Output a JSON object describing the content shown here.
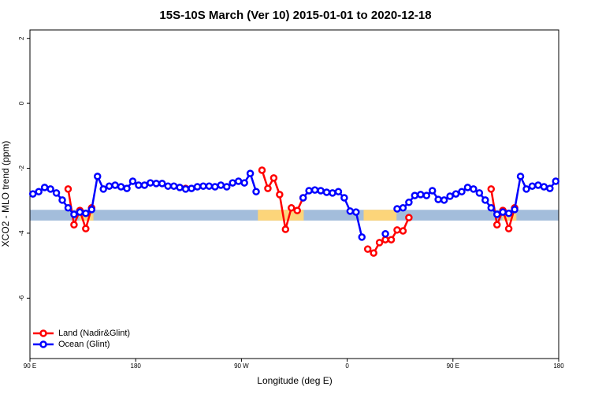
{
  "chart_data": {
    "type": "line",
    "title": "15S-10S March (Ver 10)   2015-01-01 to 2020-12-18",
    "x_label": "Longitude (deg E)",
    "y_label": "XCO2 - MLO trend (ppm)",
    "x": [
      92.5,
      97.5,
      102.5,
      107.5,
      112.5,
      117.5,
      122.5,
      127.5,
      132.5,
      137.5,
      142.5,
      147.5,
      152.5,
      157.5,
      162.5,
      167.5,
      172.5,
      177.5,
      182.5,
      187.5,
      192.5,
      197.5,
      202.5,
      207.5,
      212.5,
      217.5,
      222.5,
      227.5,
      232.5,
      237.5,
      242.5,
      247.5,
      252.5,
      257.5,
      262.5,
      267.5,
      272.5,
      277.5,
      282.5,
      287.5,
      292.5,
      297.5,
      302.5,
      307.5,
      312.5,
      317.5,
      322.5,
      327.5,
      332.5,
      337.5,
      342.5,
      347.5,
      352.5,
      357.5,
      362.5,
      367.5,
      372.5,
      377.5,
      382.5,
      387.5,
      392.5,
      397.5,
      402.5,
      407.5,
      412.5,
      417.5,
      422.5,
      427.5,
      432.5,
      437.5,
      442.5,
      447.5,
      452.5,
      457.5,
      462.5,
      467.5,
      472.5,
      477.5,
      482.5,
      487.5,
      492.5,
      497.5,
      502.5,
      507.5,
      512.5,
      517.5,
      522.5,
      527.5,
      532.5,
      537.5
    ],
    "series": [
      {
        "name": "Land (Nadir&Glint)",
        "color": "#ff0000",
        "values": [
          null,
          null,
          null,
          null,
          null,
          null,
          -2.64,
          -3.74,
          -3.3,
          -3.86,
          -3.22,
          null,
          null,
          null,
          null,
          null,
          null,
          null,
          null,
          null,
          null,
          null,
          null,
          null,
          null,
          null,
          -2.62,
          null,
          null,
          null,
          null,
          null,
          null,
          null,
          null,
          null,
          null,
          null,
          null,
          -2.06,
          -2.62,
          -2.3,
          -2.81,
          -3.88,
          -3.22,
          -3.3,
          -2.91,
          null,
          null,
          null,
          null,
          null,
          null,
          null,
          null,
          null,
          null,
          -4.49,
          -4.61,
          -4.29,
          -4.2,
          -4.2,
          -3.9,
          -3.93,
          -3.52,
          null,
          null,
          null,
          null,
          null,
          null,
          null,
          null,
          null,
          null,
          null,
          null,
          null,
          -2.64,
          -3.74,
          -3.3,
          -3.86,
          -3.22,
          null,
          null,
          null,
          null,
          null,
          null,
          null
        ]
      },
      {
        "name": "Ocean (Glint)",
        "color": "#0000ff",
        "values": [
          -2.79,
          -2.72,
          -2.59,
          -2.64,
          -2.76,
          -2.98,
          -3.22,
          -3.42,
          -3.35,
          -3.39,
          -3.27,
          -2.25,
          -2.64,
          -2.55,
          -2.52,
          -2.57,
          -2.62,
          -2.4,
          -2.52,
          -2.52,
          -2.45,
          -2.47,
          -2.47,
          -2.55,
          -2.55,
          -2.59,
          -2.64,
          -2.62,
          -2.57,
          -2.55,
          -2.55,
          -2.57,
          -2.52,
          -2.57,
          -2.45,
          -2.4,
          -2.45,
          -2.16,
          -2.72,
          null,
          null,
          null,
          null,
          null,
          null,
          null,
          -2.91,
          -2.69,
          -2.67,
          -2.69,
          -2.74,
          -2.76,
          -2.72,
          -2.91,
          -3.32,
          -3.35,
          -4.12,
          null,
          null,
          null,
          -4.02,
          null,
          -3.25,
          -3.22,
          -3.05,
          -2.84,
          -2.81,
          -2.84,
          -2.69,
          -2.96,
          -2.98,
          -2.86,
          -2.79,
          -2.72,
          -2.59,
          -2.64,
          -2.76,
          -2.98,
          -3.22,
          -3.42,
          -3.35,
          -3.39,
          -3.27,
          -2.25,
          -2.64,
          -2.55,
          -2.52,
          -2.57,
          -2.62,
          -2.4
        ]
      }
    ],
    "strip": {
      "y": [
        -3.61,
        -3.28
      ],
      "segments": [
        {
          "x": [
            90,
            540
          ],
          "color": "#a3bddb"
        },
        {
          "x": [
            132,
            144
          ],
          "color": "#fcd57a"
        },
        {
          "x": [
            284,
            323
          ],
          "color": "#fcd57a"
        },
        {
          "x": [
            374,
            402
          ],
          "color": "#fcd57a"
        },
        {
          "x": [
            492,
            504
          ],
          "color": "#fcd57a"
        }
      ]
    },
    "xlim": [
      90,
      540
    ],
    "xticks": [
      {
        "value": 90,
        "label": "90 E"
      },
      180,
      {
        "value": 270,
        "label": "90 W"
      },
      {
        "value": 360,
        "label": "0"
      },
      {
        "value": 450,
        "label": "90 E"
      },
      {
        "value": 540,
        "label": "180"
      }
    ],
    "ylim": [
      -7.86,
      2.26
    ],
    "yticks": [
      -6,
      -4,
      -2,
      0,
      2
    ],
    "legend": "bottom-left"
  }
}
